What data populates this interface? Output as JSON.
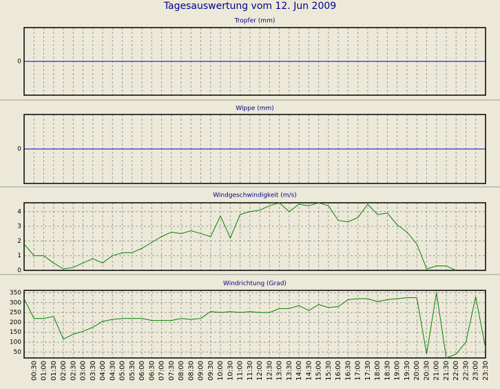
{
  "title": "Tagesauswertung vom 12. Jun 2009",
  "chart_data": [
    {
      "type": "line",
      "title": "Tropfer (mm)",
      "ylim": [
        -1,
        1
      ],
      "yticks": [
        0
      ],
      "grid": true,
      "zero_line_color": "#0000c8"
    },
    {
      "type": "line",
      "title": "Wippe (mm)",
      "ylim": [
        -1,
        1
      ],
      "yticks": [
        0
      ],
      "grid": true,
      "zero_line_color": "#0000c8"
    },
    {
      "type": "line",
      "title": "Windgeschwindigkeit (m/s)",
      "ylim": [
        0,
        4.6
      ],
      "yticks": [
        0,
        1,
        2,
        3,
        4
      ],
      "grid": true,
      "series": [
        {
          "color": "#008000",
          "values": [
            1.8,
            1.0,
            1.0,
            0.5,
            0.1,
            0.2,
            0.5,
            0.8,
            0.5,
            1.0,
            1.2,
            1.2,
            1.5,
            1.9,
            2.3,
            2.6,
            2.5,
            2.7,
            2.5,
            2.3,
            3.7,
            2.2,
            3.8,
            4.0,
            4.1,
            4.4,
            4.6,
            4.0,
            4.5,
            4.4,
            4.6,
            4.4,
            3.4,
            3.3,
            3.6,
            4.5,
            3.8,
            3.9,
            3.1,
            2.6,
            1.8,
            0.1,
            0.3,
            0.3,
            0,
            null,
            null,
            null
          ]
        }
      ]
    },
    {
      "type": "line",
      "title": "Windrichtung (Grad)",
      "ylim": [
        20,
        362
      ],
      "yticks": [
        50,
        100,
        150,
        200,
        250,
        300,
        350
      ],
      "grid": true,
      "categories": [
        null,
        "00:30",
        "01:00",
        "01:30",
        "02:00",
        "02:30",
        "03:00",
        "03:30",
        "04:00",
        "04:30",
        "05:00",
        "05:30",
        "06:00",
        "06:30",
        "07:00",
        "07:30",
        "08:00",
        "08:30",
        "09:00",
        "09:30",
        "10:00",
        "10:30",
        "11:00",
        "11:30",
        "12:00",
        "12:30",
        "13:00",
        "13:30",
        "14:00",
        "14:30",
        "15:00",
        "15:30",
        "16:00",
        "16:30",
        "17:00",
        "17:30",
        "18:00",
        "18:30",
        "19:00",
        "19:30",
        "20:00",
        "20:30",
        "21:00",
        "21:30",
        "22:00",
        "22:30",
        "23:00",
        "23:30"
      ],
      "series": [
        {
          "color": "#008000",
          "values": [
            320,
            220,
            220,
            230,
            115,
            140,
            155,
            175,
            205,
            215,
            220,
            220,
            220,
            210,
            210,
            210,
            220,
            215,
            220,
            255,
            250,
            255,
            250,
            255,
            250,
            250,
            270,
            270,
            285,
            260,
            290,
            275,
            280,
            315,
            320,
            320,
            305,
            315,
            320,
            325,
            325,
            40,
            350,
            20,
            40,
            100,
            330,
            70
          ]
        }
      ]
    }
  ]
}
